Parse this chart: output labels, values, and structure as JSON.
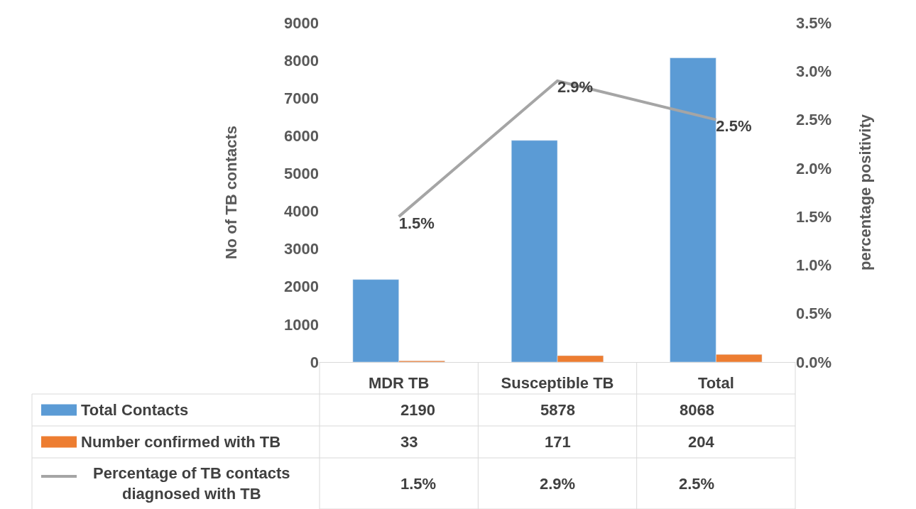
{
  "chart_data": {
    "type": "bar",
    "ylabel": "No of TB contacts",
    "y2label": "percentage positivity",
    "categories": [
      "MDR TB",
      "Susceptible TB",
      "Total"
    ],
    "series": [
      {
        "name": "Total Contacts",
        "color": "#5b9bd5",
        "values": [
          2190,
          5878,
          8068
        ],
        "value_labels": [
          "2190",
          "5878",
          "8068"
        ]
      },
      {
        "name": "Number confirmed with TB",
        "color": "#ed7d31",
        "values": [
          33,
          171,
          204
        ],
        "value_labels": [
          "33",
          "171",
          "204"
        ]
      },
      {
        "name": "Percentage of TB contacts diagnosed with TB",
        "type": "line",
        "axis": "y2",
        "color": "#a5a5a5",
        "values": [
          1.5,
          2.9,
          2.5
        ],
        "value_labels": [
          "1.5%",
          "2.9%",
          "2.5%"
        ]
      }
    ],
    "ylim": [
      0,
      9000
    ],
    "yticks": [
      0,
      1000,
      2000,
      3000,
      4000,
      5000,
      6000,
      7000,
      8000,
      9000
    ],
    "y2lim": [
      0,
      3.5
    ],
    "y2ticks": [
      {
        "value": 0,
        "label": "0.0%"
      },
      {
        "value": 0.5,
        "label": "0.5%"
      },
      {
        "value": 1,
        "label": "1.0%"
      },
      {
        "value": 1.5,
        "label": "1.5%"
      },
      {
        "value": 2,
        "label": "2.0%"
      },
      {
        "value": 2.5,
        "label": "2.5%"
      },
      {
        "value": 3,
        "label": "3.0%"
      },
      {
        "value": 3.5,
        "label": "3.5%"
      }
    ],
    "legend": "bottom",
    "marker": "none"
  }
}
